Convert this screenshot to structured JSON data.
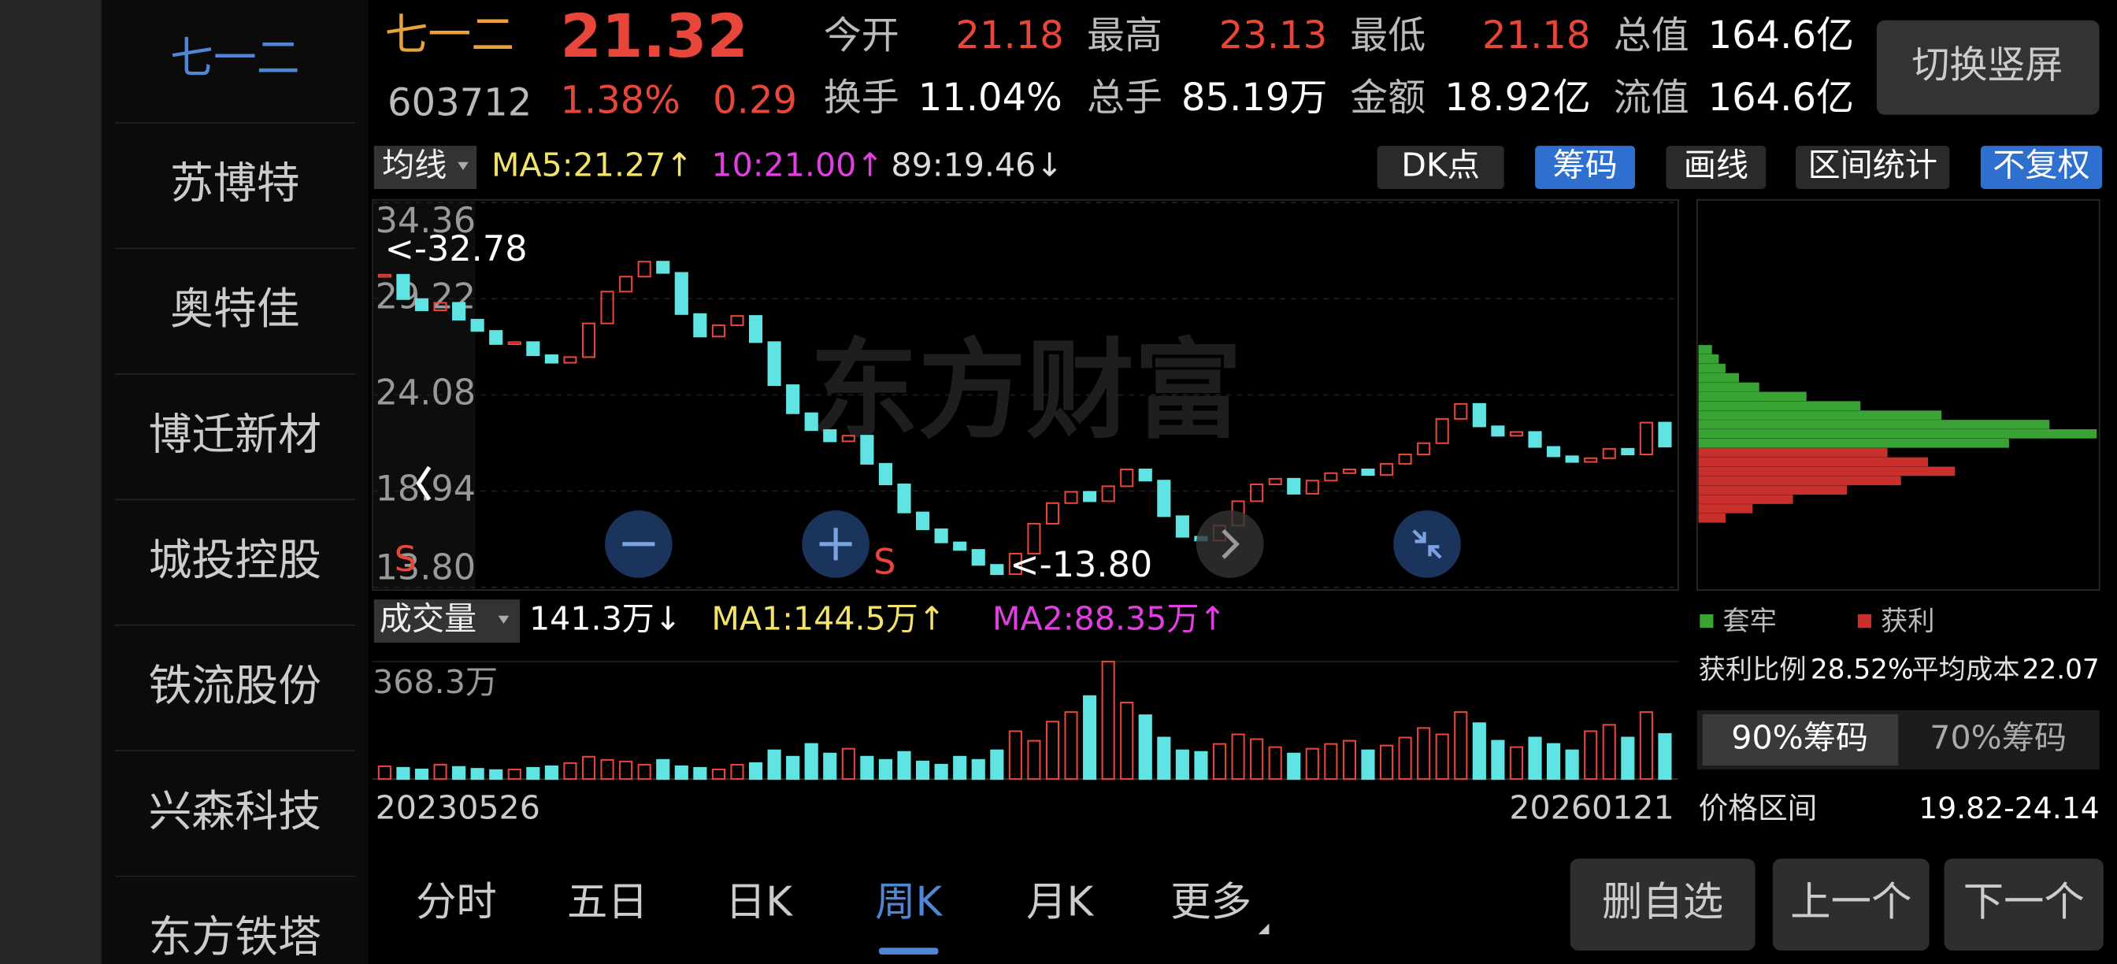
{
  "sidebar": [
    "七一二",
    "苏博特",
    "奥特佳",
    "博迁新材",
    "城投控股",
    "铁流股份",
    "兴森科技",
    "东方铁塔"
  ],
  "header": {
    "name": "七一二",
    "price": "21.32",
    "code": "603712",
    "pct": "1.38%",
    "change": "0.29",
    "stats": [
      {
        "label": "今开",
        "value": "21.18"
      },
      {
        "label": "最高",
        "value": "23.13"
      },
      {
        "label": "最低",
        "value": "21.18"
      },
      {
        "label": "总值",
        "value": "164.6亿"
      },
      {
        "label": "换手",
        "value": "11.04%"
      },
      {
        "label": "总手",
        "value": "85.19万"
      },
      {
        "label": "金额",
        "value": "18.92亿"
      },
      {
        "label": "流值",
        "value": "164.6亿"
      }
    ],
    "button": "切换竖屏"
  },
  "toolbar": {
    "ma_select": "均线",
    "ma5": "MA5:21.27↑",
    "ma10": "10:21.00↑",
    "ma89": "89:19.46↓",
    "buttons": [
      "DK点",
      "筹码",
      "画线",
      "区间统计",
      "不复权"
    ]
  },
  "chart_data": {
    "type": "candlestick",
    "up_color": "#e8463a",
    "down_color": "#5fe3e3",
    "closes": [
      30.5,
      29.2,
      28.6,
      29.0,
      28.1,
      27.5,
      26.8,
      26.9,
      26.2,
      25.8,
      26.1,
      27.9,
      29.6,
      30.4,
      31.2,
      30.6,
      28.4,
      27.2,
      27.8,
      28.3,
      26.9,
      24.6,
      23.1,
      22.2,
      21.6,
      21.9,
      20.4,
      19.3,
      17.8,
      16.9,
      16.2,
      15.8,
      15.0,
      14.5,
      15.6,
      17.2,
      18.3,
      18.9,
      18.4,
      19.2,
      20.1,
      19.5,
      17.6,
      16.5,
      16.3,
      17.1,
      18.4,
      19.3,
      19.6,
      18.8,
      19.5,
      19.9,
      20.1,
      19.8,
      20.4,
      20.9,
      21.5,
      22.8,
      23.6,
      22.4,
      21.9,
      22.1,
      21.3,
      20.8,
      20.5,
      20.7,
      21.2,
      20.9,
      22.6,
      21.32
    ],
    "ylim": [
      13.8,
      34.36
    ],
    "yticks": [
      34.36,
      29.22,
      24.08,
      18.94,
      {
        "value": 13.8,
        "label": "13.80"
      }
    ],
    "annotations": [
      "<-32.78",
      "<-13.80",
      "S",
      "S"
    ],
    "watermark": "东方财富"
  },
  "volume": {
    "label": "成交量",
    "current": "141.3万↓",
    "ma1": "MA1:144.5万↑",
    "ma2": "MA2:88.35万↑",
    "values": [
      40,
      35,
      30,
      45,
      38,
      32,
      28,
      30,
      35,
      40,
      50,
      70,
      60,
      55,
      45,
      60,
      40,
      35,
      30,
      45,
      50,
      90,
      70,
      110,
      80,
      95,
      70,
      60,
      85,
      55,
      45,
      70,
      60,
      90,
      150,
      120,
      180,
      210,
      260,
      368.3,
      240,
      200,
      130,
      90,
      85,
      110,
      140,
      125,
      100,
      80,
      95,
      110,
      120,
      90,
      105,
      130,
      160,
      140,
      210,
      175,
      120,
      100,
      130,
      110,
      90,
      150,
      170,
      130,
      210,
      141.3
    ],
    "ylim": [
      0,
      368.3
    ],
    "yticks": [
      {
        "value": 368.3,
        "label": "368.3万"
      }
    ]
  },
  "x_labels": [
    "20230526",
    "20260121"
  ],
  "chips": {
    "legend": [
      {
        "name": "套牢",
        "color": "#3aa335"
      },
      {
        "name": "获利",
        "color": "#c9302c"
      }
    ],
    "trapped_prices": [
      21.5,
      22,
      22.5,
      23,
      23.5,
      24,
      24.5,
      25,
      25.5,
      26,
      26.5
    ],
    "trapped_values": [
      230,
      295,
      260,
      180,
      120,
      80,
      45,
      30,
      20,
      15,
      10
    ],
    "profit_prices": [
      17.5,
      18,
      18.5,
      19,
      19.5,
      20,
      20.5,
      21
    ],
    "profit_values": [
      20,
      40,
      70,
      110,
      150,
      190,
      170,
      140
    ],
    "profit_ratio_label": "获利比例",
    "profit_ratio": "28.52%",
    "avg_cost_label": "平均成本",
    "avg_cost": "22.07",
    "tabs": [
      "90%筹码",
      "70%筹码"
    ],
    "range_label": "价格区间",
    "range": "19.82-24.14"
  },
  "tabs": [
    "分时",
    "五日",
    "日K",
    "周K",
    "月K",
    "更多"
  ],
  "buttons": [
    "删自选",
    "上一个",
    "下一个"
  ]
}
